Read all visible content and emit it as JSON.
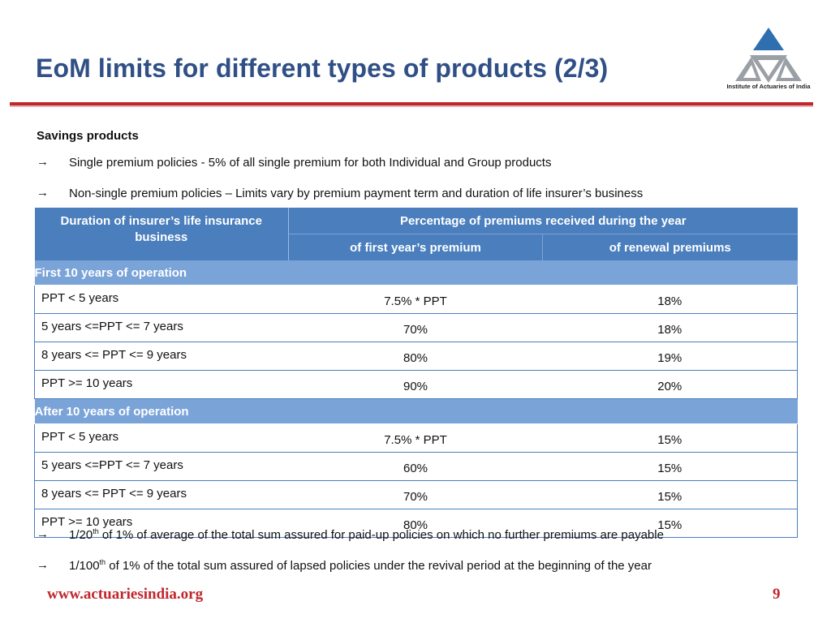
{
  "slide": {
    "title": "EoM limits for different types of products (2/3)",
    "logo_caption": "Institute of Actuaries of India",
    "section_heading": "Savings products",
    "bullets_top": [
      "Single premium policies - 5% of all single premium for both Individual and Group products",
      "Non-single premium policies – Limits vary by premium payment term and duration of life insurer’s business"
    ],
    "table": {
      "col1_header": "Duration of insurer’s life insurance business",
      "group_header": "Percentage of premiums received during the year",
      "col2_header": "of first year’s premium",
      "col3_header": "of renewal premiums",
      "section1": "First 10 years of operation",
      "rows1": [
        {
          "term": "PPT < 5 years",
          "first": "7.5% * PPT",
          "renewal": "18%"
        },
        {
          "term": "5 years <=PPT <= 7 years",
          "first": "70%",
          "renewal": "18%"
        },
        {
          "term": "8 years <= PPT <= 9 years",
          "first": "80%",
          "renewal": "19%"
        },
        {
          "term": "PPT >= 10 years",
          "first": "90%",
          "renewal": "20%"
        }
      ],
      "section2": "After 10 years of operation",
      "rows2": [
        {
          "term": "PPT < 5 years",
          "first": "7.5% * PPT",
          "renewal": "15%"
        },
        {
          "term": "5 years <=PPT <= 7 years",
          "first": "60%",
          "renewal": "15%"
        },
        {
          "term": "8 years <= PPT <= 9 years",
          "first": "70%",
          "renewal": "15%"
        },
        {
          "term": "PPT >= 10 years",
          "first": "80%",
          "renewal": "15%"
        }
      ]
    },
    "bullets_bottom": [
      {
        "pre": "1/20",
        "sup": "th",
        "post": " of 1% of average of the total sum assured for paid-up policies on which no further premiums are payable"
      },
      {
        "pre": "1/100",
        "sup": "th",
        "post": " of 1% of the total sum assured of lapsed policies under the revival period at the beginning of the year"
      }
    ],
    "footer_url": "www.actuariesindia.org",
    "page_number": "9",
    "bullet_glyph": "→",
    "colors": {
      "title": "#2f4f86",
      "accent": "#c0272d",
      "header": "#4a7ebd",
      "section": "#7aa3d8"
    }
  }
}
